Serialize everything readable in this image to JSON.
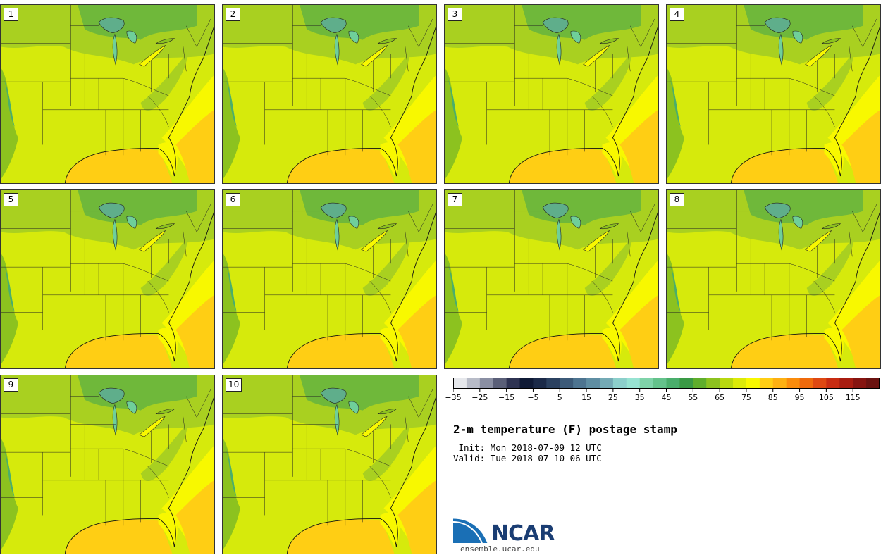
{
  "panels": [
    {
      "label": "1"
    },
    {
      "label": "2"
    },
    {
      "label": "3"
    },
    {
      "label": "4"
    },
    {
      "label": "5"
    },
    {
      "label": "6"
    },
    {
      "label": "7"
    },
    {
      "label": "8"
    },
    {
      "label": "9"
    },
    {
      "label": "10"
    }
  ],
  "colorbar": {
    "ticks": [
      "−35",
      "−25",
      "−15",
      "−5",
      "5",
      "15",
      "25",
      "35",
      "45",
      "55",
      "65",
      "75",
      "85",
      "95",
      "105",
      "115"
    ],
    "colors": [
      "#e6e8ec",
      "#b8bcc8",
      "#8a8fa3",
      "#5a5f78",
      "#2e3352",
      "#0f1a35",
      "#1b2a48",
      "#2b4160",
      "#3c5a78",
      "#4d7490",
      "#5f8ea3",
      "#74aab5",
      "#8ccfcb",
      "#97e3d2",
      "#7fd3a9",
      "#64c28b",
      "#4aae6c",
      "#3a9a45",
      "#5fae2c",
      "#8cc21f",
      "#b8d80f",
      "#dcea08",
      "#f8f800",
      "#ffce14",
      "#fdb012",
      "#fa8c0c",
      "#ef6a0c",
      "#de4812",
      "#c82c12",
      "#a81c10",
      "#861410",
      "#6a1210"
    ]
  },
  "title": "2-m temperature (F) postage stamp",
  "init": " Init: Mon 2018-07-09 12 UTC",
  "valid": "Valid: Tue 2018-07-10 06 UTC",
  "logo": {
    "name": "NCAR",
    "url": "ensemble.ucar.edu"
  }
}
